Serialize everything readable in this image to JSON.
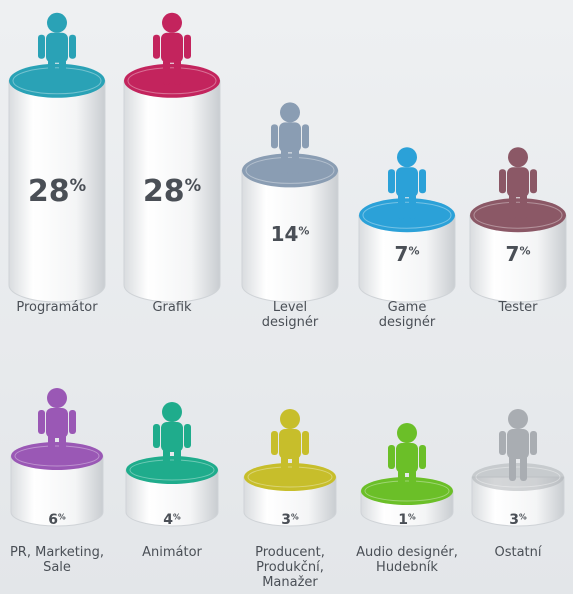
{
  "chart_data": {
    "type": "bar",
    "categories": [
      "Programátor",
      "Grafik",
      "Level designér",
      "Game designér",
      "Tester",
      "PR, Marketing, Sale",
      "Animátor",
      "Producent, Produkční, Manažer",
      "Audio designér, Hudebník",
      "Ostatní"
    ],
    "values": [
      28,
      28,
      14,
      7,
      7,
      6,
      4,
      3,
      1,
      3
    ],
    "value_labels": [
      "28%",
      "28%",
      "14%",
      "7%",
      "7%",
      "6%",
      "4%",
      "3%",
      "1%",
      "3%"
    ],
    "colors": [
      "#2aa2b6",
      "#c3245d",
      "#8a9db3",
      "#2ba1d8",
      "#8b5866",
      "#9a58b5",
      "#1fac8c",
      "#c7be2b",
      "#6bbf28",
      "#a9adb2"
    ]
  }
}
